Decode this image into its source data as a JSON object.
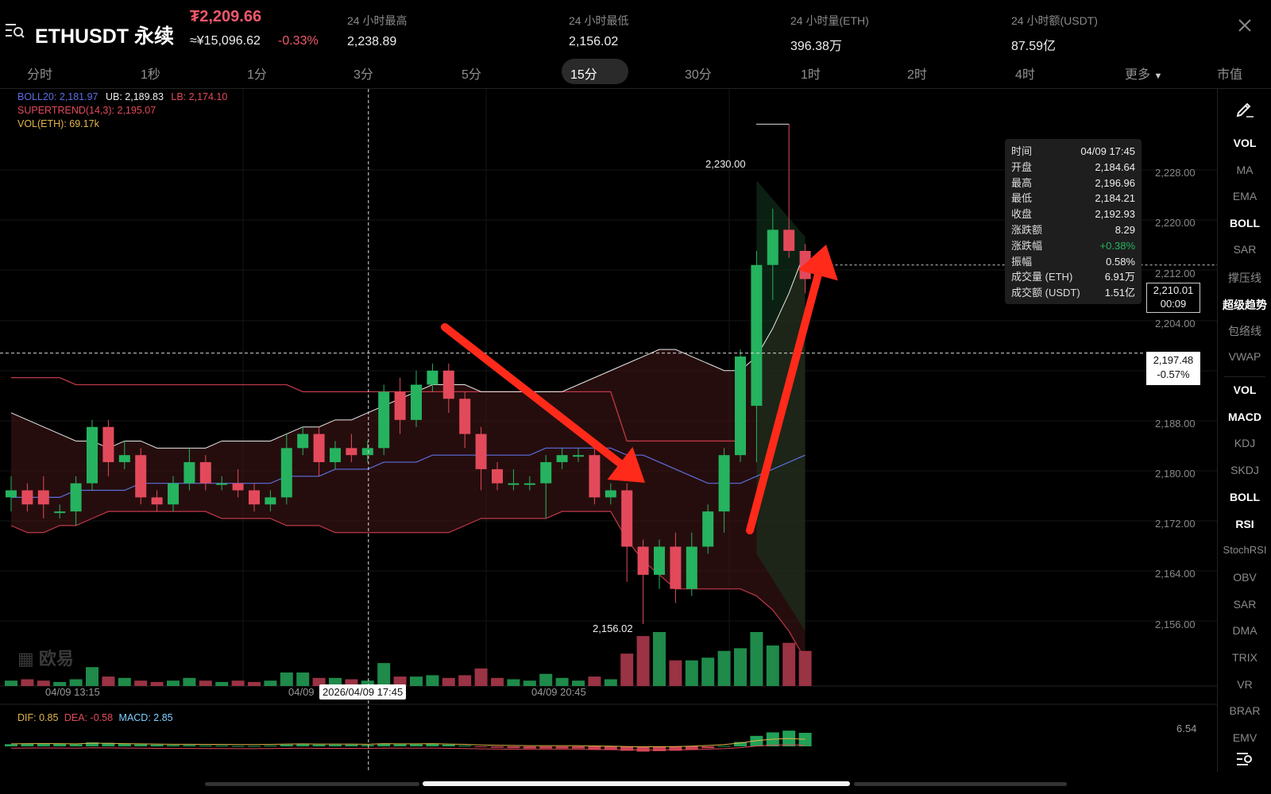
{
  "header": {
    "menu_icon": "menu-search-icon",
    "symbol": "ETHUSDT 永续",
    "last_price": "₮2,209.66",
    "cny_price": "≈¥15,096.62",
    "change_pct": "-0.33%",
    "stats": [
      {
        "label": "24 小时最高",
        "value": "2,238.89"
      },
      {
        "label": "24 小时最低",
        "value": "2,156.02"
      },
      {
        "label": "24 小时量(ETH)",
        "value": "396.38万"
      },
      {
        "label": "24 小时额(USDT)",
        "value": "87.59亿"
      }
    ],
    "close_icon": "close-icon"
  },
  "intervals": {
    "items": [
      "分时",
      "1秒",
      "1分",
      "3分",
      "5分",
      "15分",
      "30分",
      "1时",
      "2时",
      "4时"
    ],
    "selected": "15分",
    "more_label": "更多",
    "market_cap_label": "市值"
  },
  "indicators": {
    "boll": "BOLL20: 2,181.97",
    "ub": "UB: 2,189.83",
    "lb": "LB: 2,174.10",
    "supertrend": "SUPERTREND(14,3): 2,195.07",
    "vol": "VOL(ETH): 69.17k",
    "macd_dif": "DIF: 0.85",
    "macd_dea": "DEA: -0.58",
    "macd_val": "MACD: 2.85",
    "macd_axis": "6.54"
  },
  "price_axis": [
    "2,228.00",
    "2,220.00",
    "2,212.00",
    "2,204.00",
    "2,188.00",
    "2,180.00",
    "2,172.00",
    "2,164.00",
    "2,156.00"
  ],
  "annotations": {
    "high": "2,230.00",
    "low": "2,156.02",
    "current_price": "2,210.01",
    "countdown": "00:09",
    "crosshair_price": "2,197.48",
    "crosshair_pct": "-0.57%",
    "watermark": "欧易"
  },
  "time_axis": {
    "t1": "04/09 13:15",
    "t2": "04/09",
    "t3": "04/09 20:45",
    "crosshair_time": "2026/04/09 17:45"
  },
  "tooltip": [
    {
      "k": "时间",
      "v": "04/09 17:45"
    },
    {
      "k": "开盘",
      "v": "2,184.64"
    },
    {
      "k": "最高",
      "v": "2,196.96"
    },
    {
      "k": "最低",
      "v": "2,184.21"
    },
    {
      "k": "收盘",
      "v": "2,192.93"
    },
    {
      "k": "涨跌额",
      "v": "8.29"
    },
    {
      "k": "涨跌幅",
      "v": "+0.38%"
    },
    {
      "k": "振幅",
      "v": "0.58%"
    },
    {
      "k": "成交量 (ETH)",
      "v": "6.91万"
    },
    {
      "k": "成交额 (USDT)",
      "v": "1.51亿"
    }
  ],
  "sidebar": {
    "draw_icon": "pen-draw-icon",
    "main_items": [
      "VOL",
      "MA",
      "EMA",
      "BOLL",
      "SAR",
      "撑压线",
      "超级趋势",
      "包络线",
      "VWAP"
    ],
    "sub_items": [
      "VOL",
      "MACD",
      "KDJ",
      "SKDJ",
      "BOLL",
      "RSI",
      "StochRSI",
      "OBV",
      "SAR",
      "DMA",
      "TRIX",
      "VR",
      "BRAR",
      "EMV"
    ],
    "active": [
      "VOL",
      "BOLL",
      "超级趋势",
      "MACD",
      "RSI"
    ],
    "settings_icon": "indicator-settings-icon"
  },
  "colors": {
    "up": "#25b35f",
    "down": "#e24a5b",
    "price_red": "#f0586a",
    "boll_mid": "#5b6fe0",
    "arrow": "#ff2a1a"
  },
  "chart_data": {
    "type": "candlestick",
    "interval": "15分",
    "candles": [
      [
        2177,
        2178,
        2180,
        2175
      ],
      [
        2178,
        2176,
        2179,
        2175
      ],
      [
        2178,
        2176,
        2180,
        2174
      ],
      [
        2175,
        2175,
        2176,
        2174
      ],
      [
        2175,
        2179,
        2180,
        2173
      ],
      [
        2179,
        2187,
        2188,
        2178
      ],
      [
        2187,
        2182,
        2188,
        2180
      ],
      [
        2182,
        2183,
        2185,
        2181
      ],
      [
        2183,
        2177,
        2184,
        2176
      ],
      [
        2177,
        2176,
        2178,
        2175
      ],
      [
        2176,
        2179,
        2180,
        2175
      ],
      [
        2179,
        2182,
        2184,
        2178
      ],
      [
        2182,
        2179,
        2183,
        2178
      ],
      [
        2179,
        2179,
        2180,
        2178
      ],
      [
        2179,
        2178,
        2181,
        2177
      ],
      [
        2178,
        2176,
        2179,
        2175
      ],
      [
        2176,
        2177,
        2178,
        2175
      ],
      [
        2177,
        2184,
        2186,
        2176
      ],
      [
        2184,
        2186,
        2187,
        2183
      ],
      [
        2186,
        2182,
        2187,
        2180
      ],
      [
        2182,
        2184,
        2185,
        2181
      ],
      [
        2184,
        2183,
        2186,
        2182
      ],
      [
        2183,
        2184,
        2185,
        2182
      ],
      [
        2184,
        2192,
        2193,
        2183
      ],
      [
        2192,
        2188,
        2194,
        2186
      ],
      [
        2188,
        2193,
        2195,
        2187
      ],
      [
        2193,
        2195,
        2196,
        2192
      ],
      [
        2195,
        2191,
        2196,
        2189
      ],
      [
        2191,
        2186,
        2192,
        2184
      ],
      [
        2186,
        2181,
        2187,
        2178
      ],
      [
        2181,
        2179,
        2182,
        2178
      ],
      [
        2179,
        2179,
        2181,
        2178
      ],
      [
        2179,
        2179,
        2180,
        2178
      ],
      [
        2179,
        2182,
        2183,
        2174
      ],
      [
        2182,
        2183,
        2184,
        2181
      ],
      [
        2183,
        2183,
        2184,
        2182
      ],
      [
        2183,
        2177,
        2184,
        2176
      ],
      [
        2177,
        2178,
        2179,
        2176
      ],
      [
        2178,
        2170,
        2179,
        2165
      ],
      [
        2170,
        2166,
        2171,
        2159
      ],
      [
        2166,
        2170,
        2171,
        2164
      ],
      [
        2170,
        2164,
        2172,
        2162
      ],
      [
        2164,
        2170,
        2172,
        2163
      ],
      [
        2170,
        2175,
        2176,
        2169
      ],
      [
        2175,
        2183,
        2184,
        2172
      ],
      [
        2183,
        2197,
        2198,
        2182
      ],
      [
        2190,
        2210,
        2212,
        2182
      ],
      [
        2210,
        2215,
        2218,
        2205
      ],
      [
        2215,
        2212,
        2230,
        2211
      ],
      [
        2212,
        2208,
        2213,
        2206
      ]
    ],
    "volumes": [
      4,
      5,
      4,
      3,
      5,
      14,
      7,
      6,
      4,
      3,
      4,
      6,
      4,
      3,
      4,
      3,
      4,
      10,
      10,
      6,
      6,
      5,
      4,
      17,
      7,
      7,
      8,
      6,
      8,
      13,
      6,
      5,
      4,
      9,
      6,
      4,
      7,
      5,
      24,
      37,
      40,
      19,
      19,
      21,
      26,
      28,
      40,
      30,
      32,
      26
    ],
    "boll_mid": [
      2177,
      2177,
      2177,
      2177,
      2178,
      2178,
      2178,
      2178,
      2179,
      2179,
      2179,
      2179,
      2179,
      2179,
      2179,
      2179,
      2179,
      2180,
      2180,
      2180,
      2181,
      2181,
      2181,
      2182,
      2182,
      2182,
      2183,
      2183,
      2183,
      2183,
      2183,
      2183,
      2183,
      2184,
      2184,
      2184,
      2184,
      2184,
      2183,
      2183,
      2182,
      2181,
      2180,
      2179,
      2179,
      2179,
      2180,
      2181,
      2182,
      2183
    ],
    "boll_upper": [
      2189,
      2188,
      2187,
      2186,
      2185,
      2185,
      2184,
      2185,
      2185,
      2184,
      2184,
      2184,
      2184,
      2185,
      2185,
      2185,
      2185,
      2186,
      2187,
      2187,
      2188,
      2188,
      2189,
      2190,
      2191,
      2192,
      2193,
      2193,
      2193,
      2192,
      2192,
      2192,
      2192,
      2192,
      2192,
      2193,
      2194,
      2195,
      2196,
      2197,
      2198,
      2198,
      2197,
      2196,
      2195,
      2195,
      2197,
      2201,
      2206,
      2212
    ],
    "boll_lower": [
      2173,
      2172,
      2172,
      2173,
      2173,
      2174,
      2175,
      2175,
      2175,
      2175,
      2175,
      2175,
      2175,
      2174,
      2174,
      2174,
      2174,
      2173,
      2173,
      2173,
      2172,
      2172,
      2172,
      2172,
      2172,
      2172,
      2172,
      2172,
      2173,
      2174,
      2174,
      2174,
      2174,
      2174,
      2175,
      2175,
      2175,
      2175,
      2171,
      2168,
      2166,
      2164,
      2164,
      2164,
      2164,
      2164,
      2163,
      2161,
      2158,
      2154
    ],
    "supertrend": [
      2194,
      2194,
      2194,
      2194,
      2193,
      2193,
      2193,
      2193,
      2193,
      2193,
      2193,
      2193,
      2193,
      2193,
      2193,
      2193,
      2193,
      2193,
      2192,
      2192,
      2192,
      2192,
      2192,
      2192,
      2192,
      2192,
      2192,
      2192,
      2192,
      2192,
      2192,
      2192,
      2192,
      2192,
      2192,
      2192,
      2192,
      2192,
      2185,
      2185,
      2185,
      2185,
      2185,
      2185,
      2185,
      2185,
      2169,
      2165,
      2160,
      2158
    ],
    "macd_hist": [
      0.5,
      0.6,
      0.7,
      0.6,
      0.5,
      0.9,
      0.8,
      0.6,
      0.5,
      0.4,
      0.3,
      0.3,
      0.2,
      0.2,
      0.1,
      0.1,
      0.2,
      0.4,
      0.5,
      0.4,
      0.4,
      0.4,
      0.3,
      0.6,
      0.5,
      0.5,
      0.6,
      0.4,
      0.2,
      -0.1,
      -0.3,
      -0.4,
      -0.5,
      -0.5,
      -0.5,
      -0.5,
      -0.7,
      -0.8,
      -1.0,
      -1.2,
      -1.1,
      -1.0,
      -0.8,
      -0.4,
      0.1,
      1.0,
      2.4,
      3.2,
      3.6,
      3.1
    ],
    "y_range": [
      2151,
      2235
    ]
  }
}
